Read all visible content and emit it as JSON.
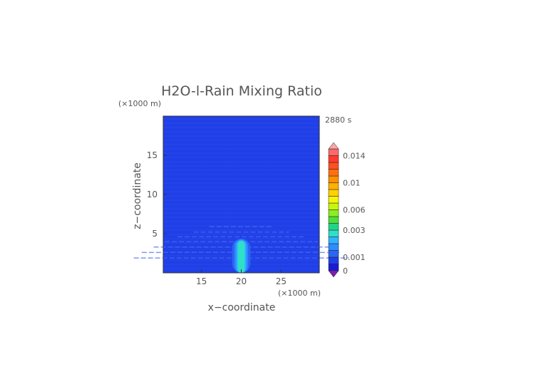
{
  "chart_data": {
    "type": "heatmap",
    "title": "H2O-l-Rain Mixing Ratio",
    "time_label": "2880 s",
    "xlabel": "x−coordinate",
    "ylabel": "z−coordinate",
    "x_unit": "(×1000 m)",
    "z_unit": "(×1000 m)",
    "xlim": [
      10.2,
      29.8
    ],
    "zlim": [
      0,
      20
    ],
    "x_ticks": [
      15,
      20,
      25
    ],
    "z_ticks": [
      5,
      10,
      15
    ],
    "background_value": 0.0005,
    "column": {
      "x_center": 20,
      "half_width": 0.6,
      "z_top": 4.0,
      "peak": 0.0028
    },
    "colorbar": {
      "levels": [
        0,
        0.0005,
        0.001,
        0.0015,
        0.002,
        0.0025,
        0.003,
        0.004,
        0.005,
        0.006,
        0.007,
        0.008,
        0.009,
        0.01,
        0.011,
        0.012,
        0.013,
        0.014,
        0.015
      ],
      "tick_labels": [
        "0",
        "0.001",
        "0.003",
        "0.006",
        "0.01",
        "0.014"
      ],
      "tick_values": [
        0,
        0.001,
        0.003,
        0.006,
        0.01,
        0.014
      ],
      "colors": [
        "#1a1ad8",
        "#1f3fe8",
        "#2a66f2",
        "#2f8cff",
        "#33b3ff",
        "#2ee0c8",
        "#22d38a",
        "#4de03a",
        "#8ced22",
        "#c8f50c",
        "#f5f50a",
        "#ffd200",
        "#ffb000",
        "#ff9000",
        "#ff7010",
        "#ff5020",
        "#ff3a30",
        "#ff6a6a"
      ],
      "under_color": "#7a1fb0",
      "over_color": "#f4a8a8"
    }
  }
}
